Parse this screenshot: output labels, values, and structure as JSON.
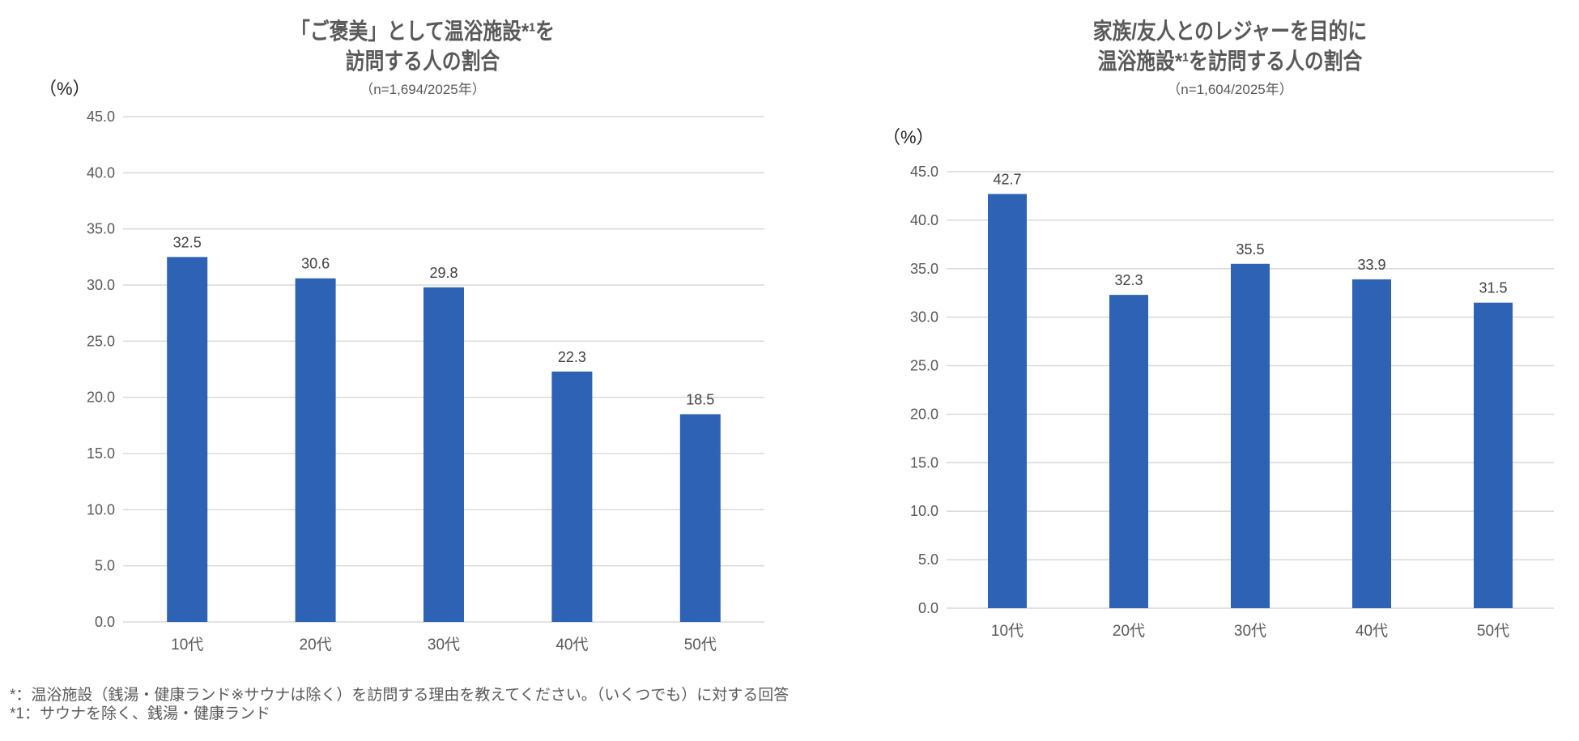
{
  "chart_data": [
    {
      "type": "bar",
      "title_lines": [
        "「ご褒美」として温浴施設*¹を",
        "訪問する人の割合"
      ],
      "subtitle": "（n=1,694/2025年）",
      "ylabel": "（%）",
      "xlabel": "",
      "categories": [
        "10代",
        "20代",
        "30代",
        "40代",
        "50代"
      ],
      "values": [
        32.5,
        30.6,
        29.8,
        22.3,
        18.5
      ],
      "ylim": [
        0,
        45
      ],
      "yticks": [
        "0.0",
        "5.0",
        "10.0",
        "15.0",
        "20.0",
        "25.0",
        "30.0",
        "35.0",
        "40.0",
        "45.0"
      ],
      "grid": true,
      "color": "#2E62B4"
    },
    {
      "type": "bar",
      "title_lines": [
        "家族/友人とのレジャーを目的に",
        "温浴施設*¹を訪問する人の割合"
      ],
      "subtitle": "（n=1,604/2025年）",
      "ylabel": "（%）",
      "xlabel": "",
      "categories": [
        "10代",
        "20代",
        "30代",
        "40代",
        "50代"
      ],
      "values": [
        42.7,
        32.3,
        35.5,
        33.9,
        31.5
      ],
      "ylim": [
        0,
        45
      ],
      "yticks": [
        "0.0",
        "5.0",
        "10.0",
        "15.0",
        "20.0",
        "25.0",
        "30.0",
        "35.0",
        "40.0",
        "45.0"
      ],
      "grid": true,
      "color": "#2E62B4"
    }
  ],
  "footnotes": [
    "*：温浴施設（銭湯・健康ランド※サウナは除く）を訪問する理由を教えてください。（いくつでも）に対する回答",
    "*1：サウナを除く、銭湯・健康ランド"
  ]
}
